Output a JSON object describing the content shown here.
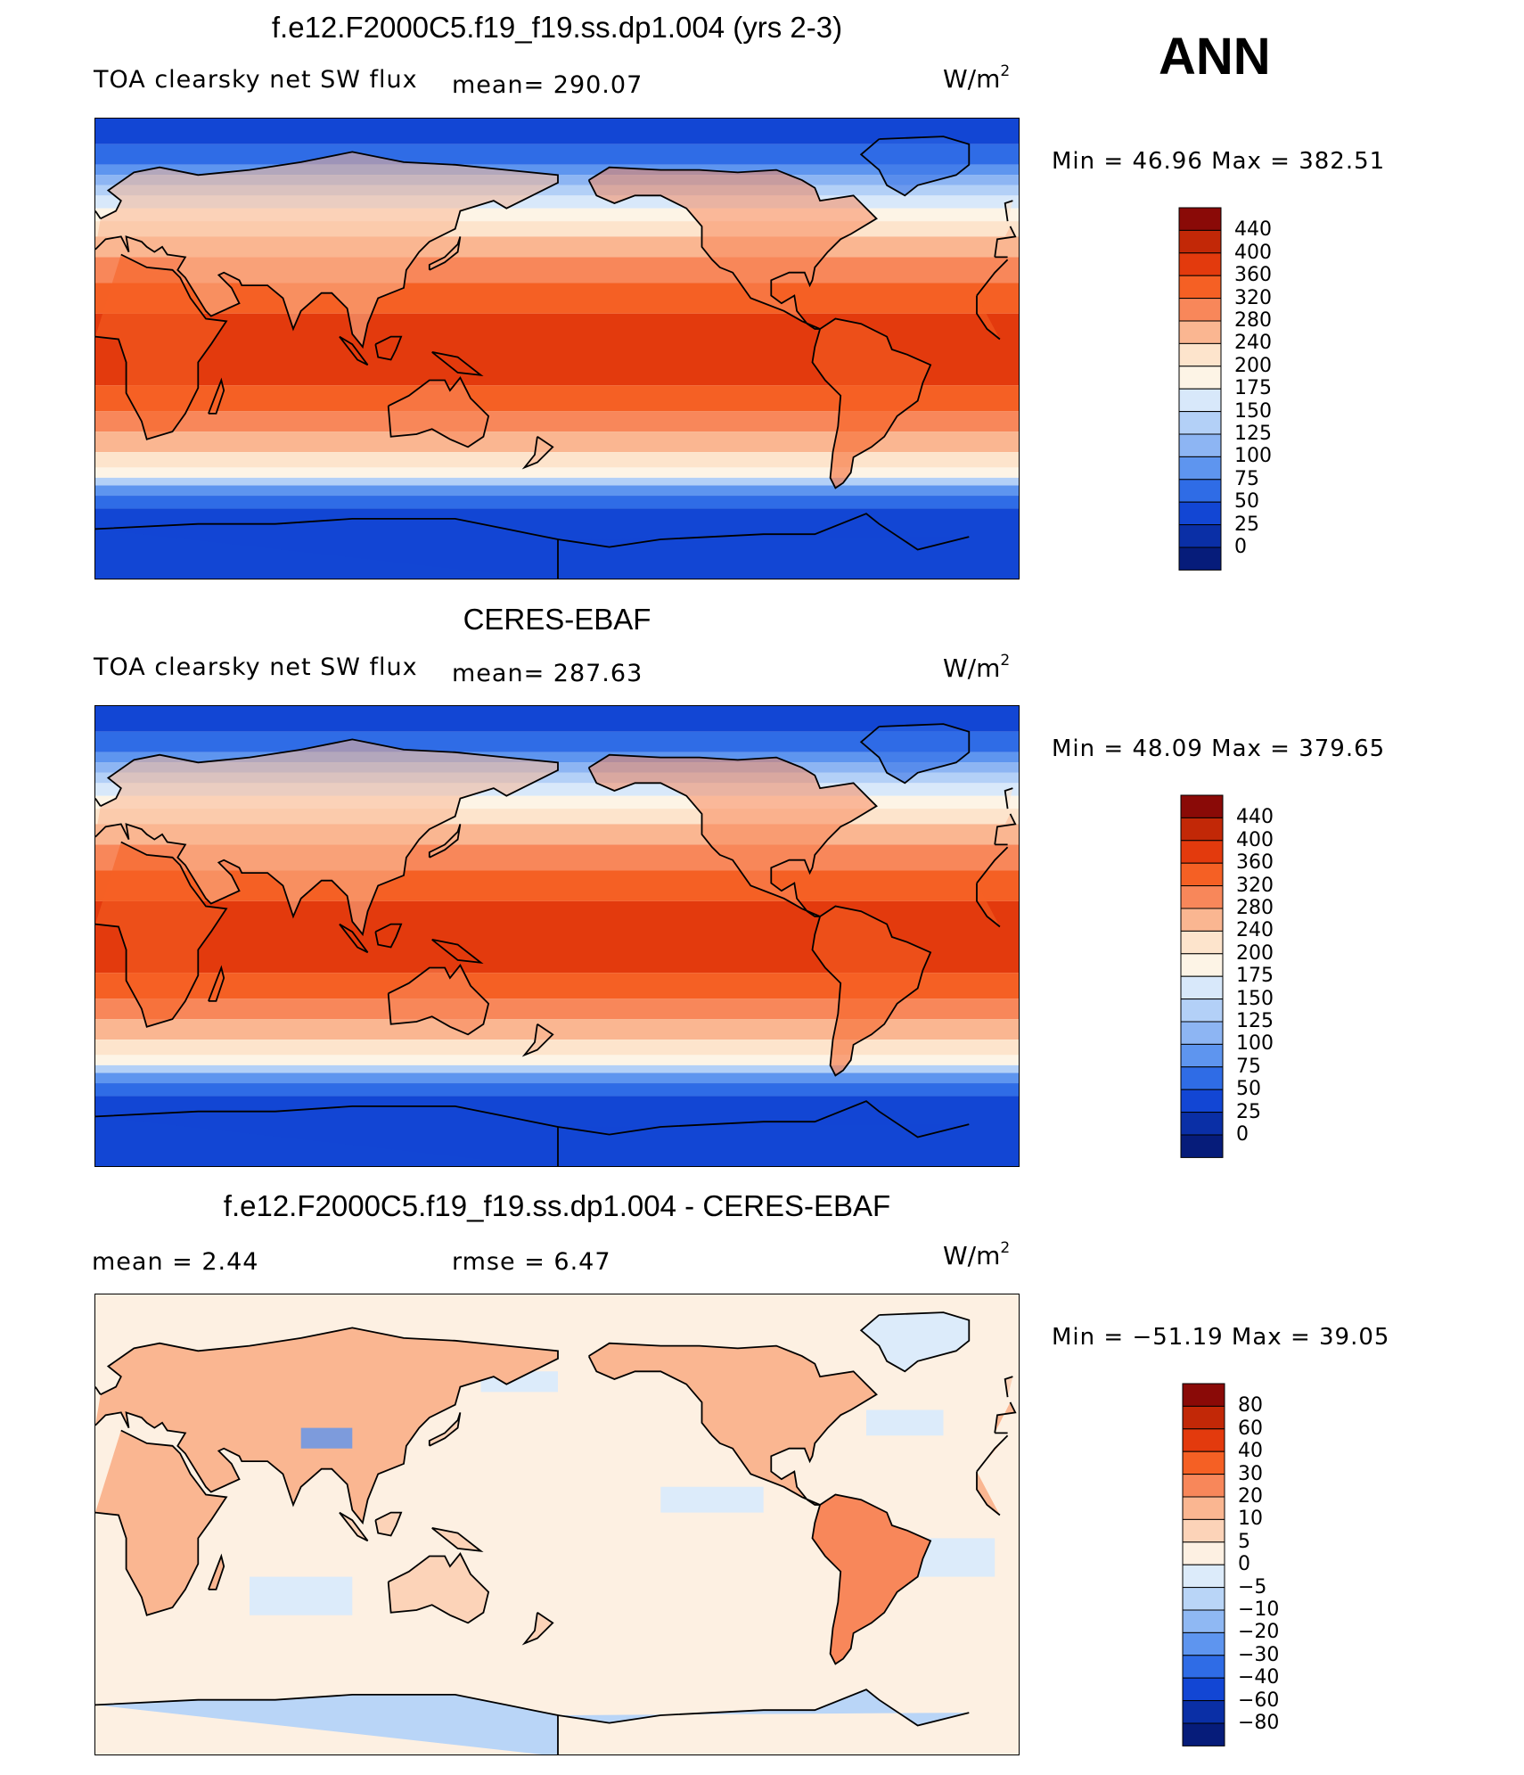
{
  "season": "ANN",
  "panels": [
    {
      "title": "f.e12.F2000C5.f19_f19.ss.dp1.004 (yrs 2-3)",
      "left_label": "TOA clearsky net SW flux",
      "center_label": "mean= 290.07",
      "units": "W/m",
      "units_sup": "2",
      "minmax": "Min =   46.96 Max = 382.51",
      "colorbar_labels": [
        "440",
        "400",
        "360",
        "320",
        "280",
        "240",
        "200",
        "175",
        "150",
        "125",
        "100",
        "75",
        "50",
        "25",
        "0"
      ],
      "colorbar_colors": [
        "#8a0a07",
        "#c22807",
        "#e33a0d",
        "#f56024",
        "#f8875a",
        "#fab691",
        "#fde4cc",
        "#fdf4e6",
        "#d8e8fa",
        "#b3d0f7",
        "#8db5f3",
        "#5e95ef",
        "#2f6ce6",
        "#1246d4",
        "#0a2fa6",
        "#061c7a"
      ]
    },
    {
      "title": "CERES-EBAF",
      "left_label": "TOA clearsky net SW flux",
      "center_label": "mean= 287.63",
      "units": "W/m",
      "units_sup": "2",
      "minmax": "Min =   48.09 Max = 379.65",
      "colorbar_labels": [
        "440",
        "400",
        "360",
        "320",
        "280",
        "240",
        "200",
        "175",
        "150",
        "125",
        "100",
        "75",
        "50",
        "25",
        "0"
      ],
      "colorbar_colors": [
        "#8a0a07",
        "#c22807",
        "#e33a0d",
        "#f56024",
        "#f8875a",
        "#fab691",
        "#fde4cc",
        "#fdf4e6",
        "#d8e8fa",
        "#b3d0f7",
        "#8db5f3",
        "#5e95ef",
        "#2f6ce6",
        "#1246d4",
        "#0a2fa6",
        "#061c7a"
      ]
    },
    {
      "title": "f.e12.F2000C5.f19_f19.ss.dp1.004 - CERES-EBAF",
      "left_label": "mean =     2.44",
      "center_label": "rmse =     6.47",
      "units": "W/m",
      "units_sup": "2",
      "minmax": "Min = −51.19 Max =    39.05",
      "colorbar_labels": [
        "80",
        "60",
        "40",
        "30",
        "20",
        "10",
        "5",
        "0",
        "−5",
        "−10",
        "−20",
        "−30",
        "−40",
        "−60",
        "−80"
      ],
      "colorbar_colors": [
        "#8a0a07",
        "#c22807",
        "#e33a0d",
        "#f56024",
        "#f8875a",
        "#fab691",
        "#fcd3b8",
        "#fdf0e2",
        "#dcebfa",
        "#b9d5f7",
        "#8fb8f3",
        "#5e95ef",
        "#2f6ce6",
        "#1246d4",
        "#0a2fa6",
        "#061c7a"
      ]
    }
  ],
  "chart_data": {
    "type": "heatmap",
    "variable": "TOA clearsky net SW flux",
    "units": "W/m2",
    "season": "ANN",
    "maps": [
      {
        "name": "f.e12.F2000C5.f19_f19.ss.dp1.004 (yrs 2-3)",
        "mean": 290.07,
        "min": 46.96,
        "max": 382.51,
        "levels": [
          0,
          25,
          50,
          75,
          100,
          125,
          150,
          175,
          200,
          240,
          280,
          320,
          360,
          400,
          440
        ]
      },
      {
        "name": "CERES-EBAF",
        "mean": 287.63,
        "min": 48.09,
        "max": 379.65,
        "levels": [
          0,
          25,
          50,
          75,
          100,
          125,
          150,
          175,
          200,
          240,
          280,
          320,
          360,
          400,
          440
        ]
      },
      {
        "name": "f.e12.F2000C5.f19_f19.ss.dp1.004 - CERES-EBAF",
        "mean": 2.44,
        "rmse": 6.47,
        "min": -51.19,
        "max": 39.05,
        "levels": [
          -80,
          -60,
          -40,
          -30,
          -20,
          -10,
          -5,
          0,
          5,
          10,
          20,
          30,
          40,
          60,
          80
        ]
      }
    ]
  }
}
